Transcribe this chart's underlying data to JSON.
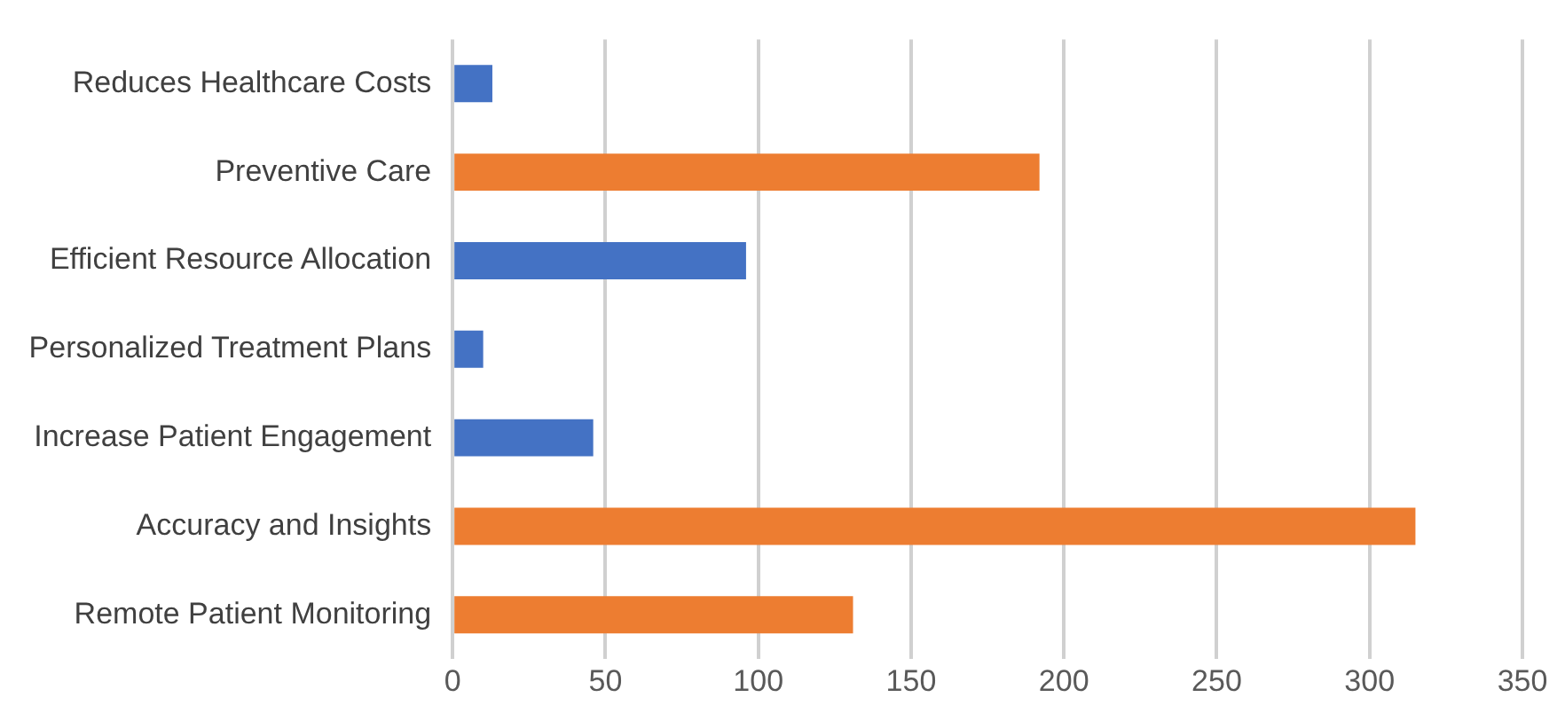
{
  "chart_data": {
    "type": "bar",
    "orientation": "horizontal",
    "categories": [
      "Reduces Healthcare Costs",
      "Preventive Care",
      "Efficient Resource Allocation",
      "Personalized Treatment Plans",
      "Increase Patient Engagement",
      "Accuracy and Insights",
      "Remote Patient Monitoring"
    ],
    "values": [
      13,
      192,
      96,
      10,
      46,
      315,
      131
    ],
    "colors": [
      "#4472c4",
      "#ed7d31",
      "#4472c4",
      "#4472c4",
      "#4472c4",
      "#ed7d31",
      "#ed7d31"
    ],
    "xlim": [
      0,
      350
    ],
    "xticks": [
      0,
      50,
      100,
      150,
      200,
      250,
      300,
      350
    ],
    "grid": "x",
    "legend": false
  }
}
